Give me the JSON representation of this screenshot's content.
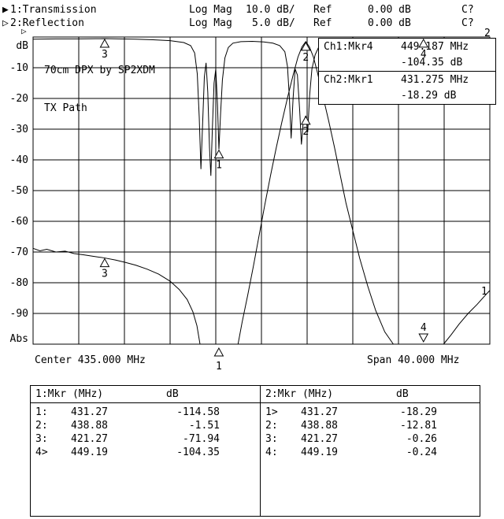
{
  "header": {
    "ch1": {
      "icon": "▶",
      "label": "1:Transmission",
      "format": "Log Mag",
      "scale": "10.0 dB/",
      "ref_label": "Ref",
      "ref_value": "0.00 dB",
      "cal": "C?"
    },
    "ch2": {
      "icon": "▷",
      "label": "2:Reflection",
      "format": "Log Mag",
      "scale": "5.0 dB/",
      "ref_label": "Ref",
      "ref_value": "0.00 dB",
      "cal": "C?"
    }
  },
  "plot": {
    "title_line1": "70cm DPX by SP2XDM",
    "title_line2": "TX Path",
    "ref_marker_icon": "▷",
    "ch1_readout": {
      "label": "Ch1:Mkr4",
      "freq": "449.187 MHz",
      "value": "-104.35 dB"
    },
    "ch2_readout": {
      "label": "Ch2:Mkr1",
      "freq": "431.275 MHz",
      "value": "-18.29 dB"
    },
    "center_label": "Center 435.000 MHz",
    "span_label": "Span 40.000 MHz"
  },
  "chart_data": {
    "type": "line",
    "title": "70cm DPX by SP2XDM TX Path",
    "x_axis": {
      "start_mhz": 415,
      "stop_mhz": 455,
      "center_mhz": 435,
      "span_mhz": 40,
      "divisions": 10
    },
    "y_axis": {
      "top_label": "dB",
      "bottom_label": "Abs",
      "tick_labels": [
        "-10",
        "-20",
        "-30",
        "-40",
        "-50",
        "-60",
        "-70",
        "-80",
        "-90"
      ],
      "divisions": 10
    },
    "series": [
      {
        "name": "transmission",
        "channel": 1,
        "scale_db_per_div": 10.0,
        "ref_db": 0.0,
        "points": [
          [
            415,
            -68.8
          ],
          [
            415.6,
            -69.6
          ],
          [
            416.2,
            -69.1
          ],
          [
            417,
            -70.0
          ],
          [
            417.8,
            -69.7
          ],
          [
            418.6,
            -70.5
          ],
          [
            419.4,
            -70.9
          ],
          [
            420.3,
            -71.4
          ],
          [
            421.27,
            -71.94
          ],
          [
            422.2,
            -72.6
          ],
          [
            423,
            -73.3
          ],
          [
            424,
            -74.3
          ],
          [
            425,
            -75.6
          ],
          [
            426,
            -77.2
          ],
          [
            427,
            -79.5
          ],
          [
            427.8,
            -82.2
          ],
          [
            428.5,
            -85.5
          ],
          [
            429,
            -89.5
          ],
          [
            429.35,
            -94
          ],
          [
            429.62,
            -100
          ],
          [
            430,
            -108
          ],
          [
            430.6,
            -113
          ],
          [
            431.27,
            -114.58
          ],
          [
            432,
            -112
          ],
          [
            432.5,
            -106
          ],
          [
            432.95,
            -100
          ],
          [
            433.3,
            -93
          ],
          [
            433.8,
            -84
          ],
          [
            434.3,
            -74.5
          ],
          [
            434.8,
            -64.5
          ],
          [
            435.3,
            -54.5
          ],
          [
            435.8,
            -45
          ],
          [
            436.3,
            -36
          ],
          [
            436.8,
            -27.5
          ],
          [
            437.3,
            -19.5
          ],
          [
            437.8,
            -12
          ],
          [
            438.2,
            -6.5
          ],
          [
            438.55,
            -3.2
          ],
          [
            438.88,
            -1.51
          ],
          [
            439.2,
            -3.2
          ],
          [
            439.55,
            -6.5
          ],
          [
            439.9,
            -11.5
          ],
          [
            440.4,
            -19.5
          ],
          [
            440.9,
            -27.5
          ],
          [
            441.4,
            -36
          ],
          [
            441.9,
            -45
          ],
          [
            442.4,
            -54
          ],
          [
            443,
            -63
          ],
          [
            443.6,
            -72
          ],
          [
            444.3,
            -81
          ],
          [
            445,
            -89
          ],
          [
            445.8,
            -96
          ],
          [
            446.55,
            -100
          ],
          [
            447.5,
            -105.5
          ],
          [
            448.5,
            -108.5
          ],
          [
            449.19,
            -104.35
          ],
          [
            450,
            -102
          ],
          [
            450.95,
            -100
          ],
          [
            451.6,
            -97
          ],
          [
            452.3,
            -93.5
          ],
          [
            453.1,
            -90
          ],
          [
            453.9,
            -87
          ],
          [
            454.5,
            -84.5
          ],
          [
            455,
            -82.5
          ]
        ]
      },
      {
        "name": "reflection",
        "channel": 2,
        "scale_db_per_div": 5.0,
        "ref_db": 0.0,
        "points": [
          [
            415,
            -0.35
          ],
          [
            417,
            -0.3
          ],
          [
            419,
            -0.3
          ],
          [
            420.5,
            -0.28
          ],
          [
            421.27,
            -0.26
          ],
          [
            422.5,
            -0.3
          ],
          [
            424,
            -0.35
          ],
          [
            425.5,
            -0.45
          ],
          [
            427,
            -0.6
          ],
          [
            428.2,
            -0.9
          ],
          [
            428.8,
            -1.4
          ],
          [
            429.15,
            -2.6
          ],
          [
            429.38,
            -6
          ],
          [
            429.55,
            -13
          ],
          [
            429.7,
            -21.5
          ],
          [
            429.85,
            -14
          ],
          [
            430,
            -6.5
          ],
          [
            430.15,
            -4.2
          ],
          [
            430.3,
            -9
          ],
          [
            430.45,
            -18
          ],
          [
            430.57,
            -22.6
          ],
          [
            430.7,
            -15
          ],
          [
            430.85,
            -7.5
          ],
          [
            431,
            -5.2
          ],
          [
            431.15,
            -11
          ],
          [
            431.275,
            -18.29
          ],
          [
            431.42,
            -12.5
          ],
          [
            431.58,
            -7
          ],
          [
            431.8,
            -3.4
          ],
          [
            432.1,
            -1.7
          ],
          [
            432.5,
            -1
          ],
          [
            433.2,
            -0.75
          ],
          [
            434.2,
            -0.7
          ],
          [
            435.2,
            -0.8
          ],
          [
            436,
            -1
          ],
          [
            436.6,
            -1.4
          ],
          [
            437.05,
            -2.4
          ],
          [
            437.28,
            -4.8
          ],
          [
            437.45,
            -10
          ],
          [
            437.6,
            -16.5
          ],
          [
            437.77,
            -10
          ],
          [
            437.95,
            -5.2
          ],
          [
            438.15,
            -6.2
          ],
          [
            438.35,
            -12
          ],
          [
            438.5,
            -17.5
          ],
          [
            438.65,
            -14
          ],
          [
            438.88,
            -12.81
          ],
          [
            439.05,
            -15.5
          ],
          [
            439.22,
            -9.5
          ],
          [
            439.42,
            -5.2
          ],
          [
            439.7,
            -2.9
          ],
          [
            440,
            -1.7
          ],
          [
            440.5,
            -1.05
          ],
          [
            441.2,
            -0.75
          ],
          [
            442.5,
            -0.55
          ],
          [
            444,
            -0.42
          ],
          [
            446,
            -0.33
          ],
          [
            448,
            -0.28
          ],
          [
            449.19,
            -0.24
          ],
          [
            451,
            -0.22
          ],
          [
            453,
            -0.21
          ],
          [
            455,
            -0.2
          ]
        ]
      }
    ],
    "markers": [
      {
        "label": "1",
        "series": "transmission",
        "mhz": 431.27,
        "db": -114.58,
        "pin": "below-axis"
      },
      {
        "label": "2",
        "series": "transmission",
        "mhz": 438.88,
        "db": -1.51
      },
      {
        "label": "3",
        "series": "transmission",
        "mhz": 421.27,
        "db": -71.94
      },
      {
        "label": "4",
        "series": "transmission",
        "mhz": 449.19,
        "db": -104.35,
        "pin": "bottom-down"
      },
      {
        "label": "1",
        "series": "reflection",
        "mhz": 431.275,
        "db": -18.29
      },
      {
        "label": "2",
        "series": "reflection",
        "mhz": 438.88,
        "db": -12.81
      },
      {
        "label": "3",
        "series": "reflection",
        "mhz": 421.27,
        "db": -0.26
      },
      {
        "label": "4",
        "series": "reflection",
        "mhz": 449.19,
        "db": -0.24
      }
    ],
    "trace_id_labels": [
      {
        "label": "2",
        "x": 615,
        "y": 46
      },
      {
        "label": "1",
        "x": 611,
        "y": 374
      }
    ]
  },
  "marker_table": {
    "left": {
      "title": "1:Mkr (MHz)",
      "unit": "dB",
      "rows": [
        [
          "1:",
          "431.27",
          "-114.58"
        ],
        [
          "2:",
          "438.88",
          "-1.51"
        ],
        [
          "3:",
          "421.27",
          "-71.94"
        ],
        [
          "4>",
          "449.19",
          "-104.35"
        ]
      ]
    },
    "right": {
      "title": "2:Mkr (MHz)",
      "unit": "dB",
      "rows": [
        [
          "1>",
          "431.27",
          "-18.29"
        ],
        [
          "2:",
          "438.88",
          "-12.81"
        ],
        [
          "3:",
          "421.27",
          "-0.26"
        ],
        [
          "4:",
          "449.19",
          "-0.24"
        ]
      ]
    }
  }
}
